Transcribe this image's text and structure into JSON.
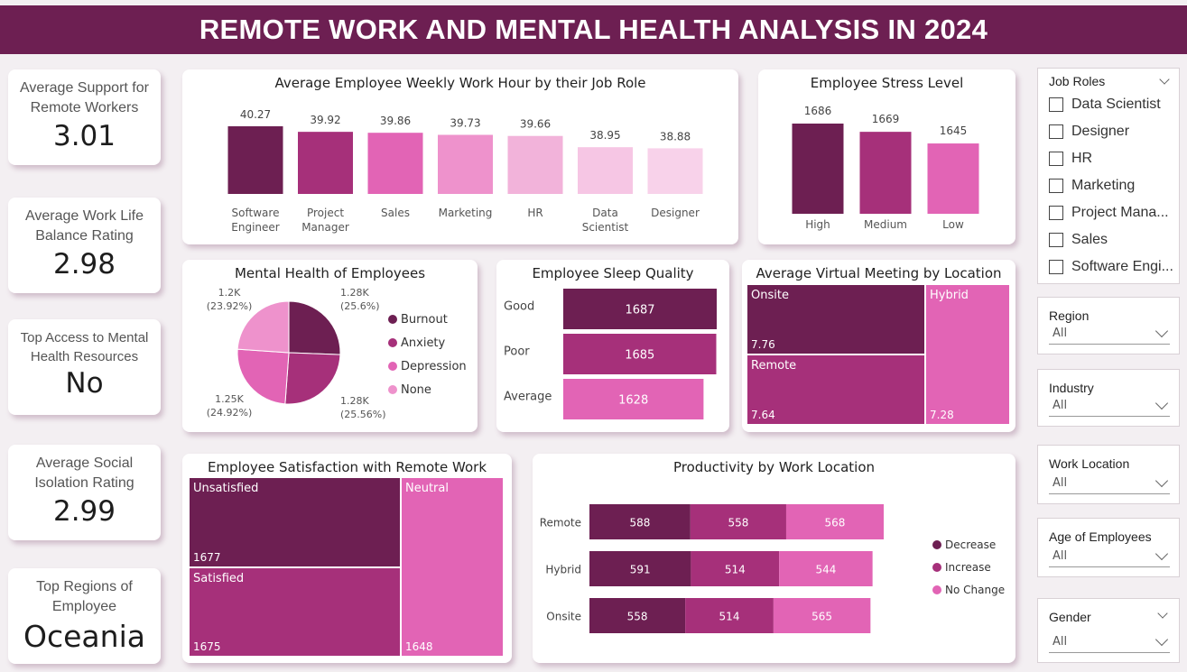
{
  "title": "REMOTE WORK AND MENTAL HEALTH ANALYSIS IN 2024",
  "kpis": [
    {
      "label": "Average Support for Remote Workers",
      "value": "3.01"
    },
    {
      "label": "Average Work Life Balance Rating",
      "value": "2.98"
    },
    {
      "label": "Top Access to Mental Health Resources",
      "value": "No"
    },
    {
      "label": "Average Social Isolation Rating",
      "value": "2.99"
    },
    {
      "label": "Top Regions of Employee",
      "value": "Oceania"
    }
  ],
  "colors": {
    "dark": "#6d1f52",
    "mid": "#a6307a",
    "pink": "#e264b5",
    "light": "#ee92cc",
    "lighter": "#f2b3da",
    "pale": "#f6c6e4",
    "paler": "#f8d2ea",
    "banner": "#6d1f52"
  },
  "chart_data": [
    {
      "type": "bar",
      "title": "Average Employee Weekly Work Hour by their Job Role",
      "categories": [
        "Software Engineer",
        "Project Manager",
        "Sales",
        "Marketing",
        "HR",
        "Data Scientist",
        "Designer"
      ],
      "category_lines": [
        [
          "Software",
          "Engineer"
        ],
        [
          "Project",
          "Manager"
        ],
        [
          "Sales"
        ],
        [
          "Marketing"
        ],
        [
          "HR"
        ],
        [
          "Data",
          "Scientist"
        ],
        [
          "Designer"
        ]
      ],
      "values": [
        40.27,
        39.92,
        39.86,
        39.73,
        39.66,
        38.95,
        38.88
      ],
      "labels": [
        "40.27",
        "39.92",
        "39.86",
        "39.73",
        "39.66",
        "38.95",
        "38.88"
      ]
    },
    {
      "type": "bar",
      "title": "Employee Stress Level",
      "categories": [
        "High",
        "Medium",
        "Low"
      ],
      "values": [
        1686,
        1669,
        1645
      ],
      "labels": [
        "1686",
        "1669",
        "1645"
      ]
    },
    {
      "type": "pie",
      "title": "Mental Health of Employees",
      "categories": [
        "Burnout",
        "Anxiety",
        "Depression",
        "None"
      ],
      "values": [
        25.6,
        25.56,
        24.92,
        23.92
      ],
      "labels": [
        "1.28K\n(25.6%)",
        "1.28K\n(25.56%)",
        "1.25K\n(24.92%)",
        "1.2K\n(23.92%)"
      ]
    },
    {
      "type": "bar",
      "orientation": "horizontal",
      "title": "Employee Sleep Quality",
      "categories": [
        "Good",
        "Poor",
        "Average"
      ],
      "values": [
        1687,
        1685,
        1628
      ],
      "labels": [
        "1687",
        "1685",
        "1628"
      ]
    },
    {
      "type": "heatmap",
      "subtype": "treemap",
      "title": "Average Virtual Meeting by Location",
      "categories": [
        "Onsite",
        "Remote",
        "Hybrid"
      ],
      "values": [
        7.76,
        7.64,
        7.28
      ],
      "labels": [
        "7.76",
        "7.64",
        "7.28"
      ]
    },
    {
      "type": "heatmap",
      "subtype": "treemap",
      "title": "Employee Satisfaction with Remote Work",
      "categories": [
        "Unsatisfied",
        "Satisfied",
        "Neutral"
      ],
      "values": [
        1677,
        1675,
        1648
      ],
      "labels": [
        "1677",
        "1675",
        "1648"
      ]
    },
    {
      "type": "bar",
      "orientation": "horizontal",
      "stacked": true,
      "title": "Productivity by Work Location",
      "categories": [
        "Remote",
        "Hybrid",
        "Onsite"
      ],
      "series": [
        {
          "name": "Decrease",
          "values": [
            588,
            591,
            558
          ]
        },
        {
          "name": "Increase",
          "values": [
            558,
            514,
            514
          ]
        },
        {
          "name": "No Change",
          "values": [
            568,
            544,
            565
          ]
        }
      ],
      "legend": "right"
    }
  ],
  "slicers": {
    "job_roles": {
      "title": "Job Roles",
      "items": [
        "Data Scientist",
        "Designer",
        "HR",
        "Marketing",
        "Project Mana...",
        "Sales",
        "Software Engi..."
      ]
    },
    "region": {
      "title": "Region",
      "value": "All"
    },
    "industry": {
      "title": "Industry",
      "value": "All"
    },
    "work_location": {
      "title": "Work Location",
      "value": "All"
    },
    "age": {
      "title": "Age of Employees",
      "value": "All"
    },
    "gender": {
      "title": "Gender",
      "value": "All"
    }
  }
}
